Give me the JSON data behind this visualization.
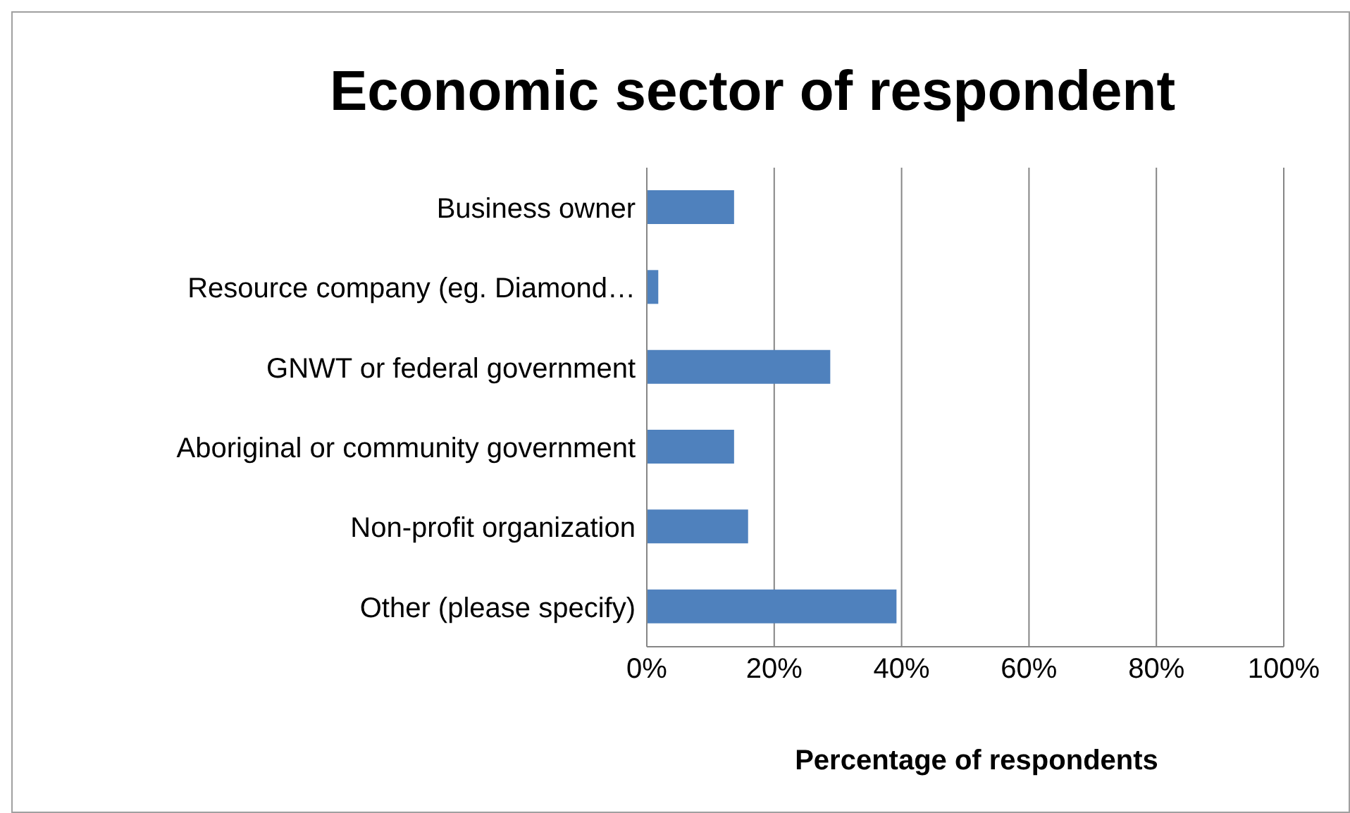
{
  "chart_data": {
    "type": "bar",
    "orientation": "horizontal",
    "title": "Economic sector of respondent",
    "xlabel": "Percentage of respondents",
    "categories": [
      "Business owner",
      "Resource company (eg. Diamond…",
      "GNWT or federal government",
      "Aboriginal or community government",
      "Non-profit organization",
      "Other (please specify)"
    ],
    "values": [
      13.7,
      1.8,
      28.8,
      13.7,
      15.9,
      39.2
    ],
    "color": "#4f81bd",
    "xlim": [
      0,
      100
    ],
    "xticks": [
      {
        "value": 0,
        "label": "0%"
      },
      {
        "value": 20,
        "label": "20%"
      },
      {
        "value": 40,
        "label": "40%"
      },
      {
        "value": 60,
        "label": "60%"
      },
      {
        "value": 80,
        "label": "80%"
      },
      {
        "value": 100,
        "label": "100%"
      }
    ],
    "grid": "x"
  }
}
